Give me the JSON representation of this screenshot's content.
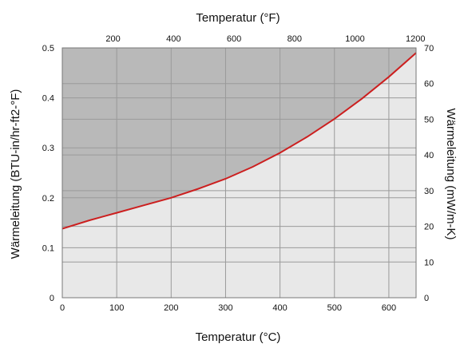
{
  "chart_data": {
    "type": "area",
    "title": "",
    "x_top_label": "Temperatur (°F)",
    "x_bottom_label": "Temperatur (°C)",
    "y_left_label": "Wärmeleitung (BTU-in/hr-ft2-°F)",
    "y_right_label": "Wärmeleitung (mW/m-K)",
    "x_bottom_lim": [
      0,
      650
    ],
    "x_bottom_ticks": [
      0,
      100,
      200,
      300,
      400,
      500,
      600
    ],
    "x_top_ticks": [
      200,
      400,
      600,
      800,
      1000,
      1200
    ],
    "y_left_lim": [
      0,
      0.5
    ],
    "y_left_ticks": [
      "0",
      "0.1",
      "0.2",
      "0.3",
      "0.4",
      "0.5"
    ],
    "y_right_lim": [
      0,
      70
    ],
    "y_right_ticks": [
      0,
      10,
      20,
      30,
      40,
      50,
      60,
      70
    ],
    "grid": true,
    "colors": {
      "curve": "#cc1f1f",
      "above": "#b9b9b9",
      "below": "#e8e8e8",
      "grid": "#9a9a9a"
    },
    "series": [
      {
        "x": [
          0,
          50,
          100,
          150,
          200,
          250,
          300,
          350,
          400,
          450,
          500,
          550,
          600,
          650
        ],
        "values": [
          0.138,
          0.155,
          0.17,
          0.185,
          0.2,
          0.218,
          0.238,
          0.262,
          0.29,
          0.322,
          0.358,
          0.398,
          0.442,
          0.49
        ]
      }
    ]
  }
}
